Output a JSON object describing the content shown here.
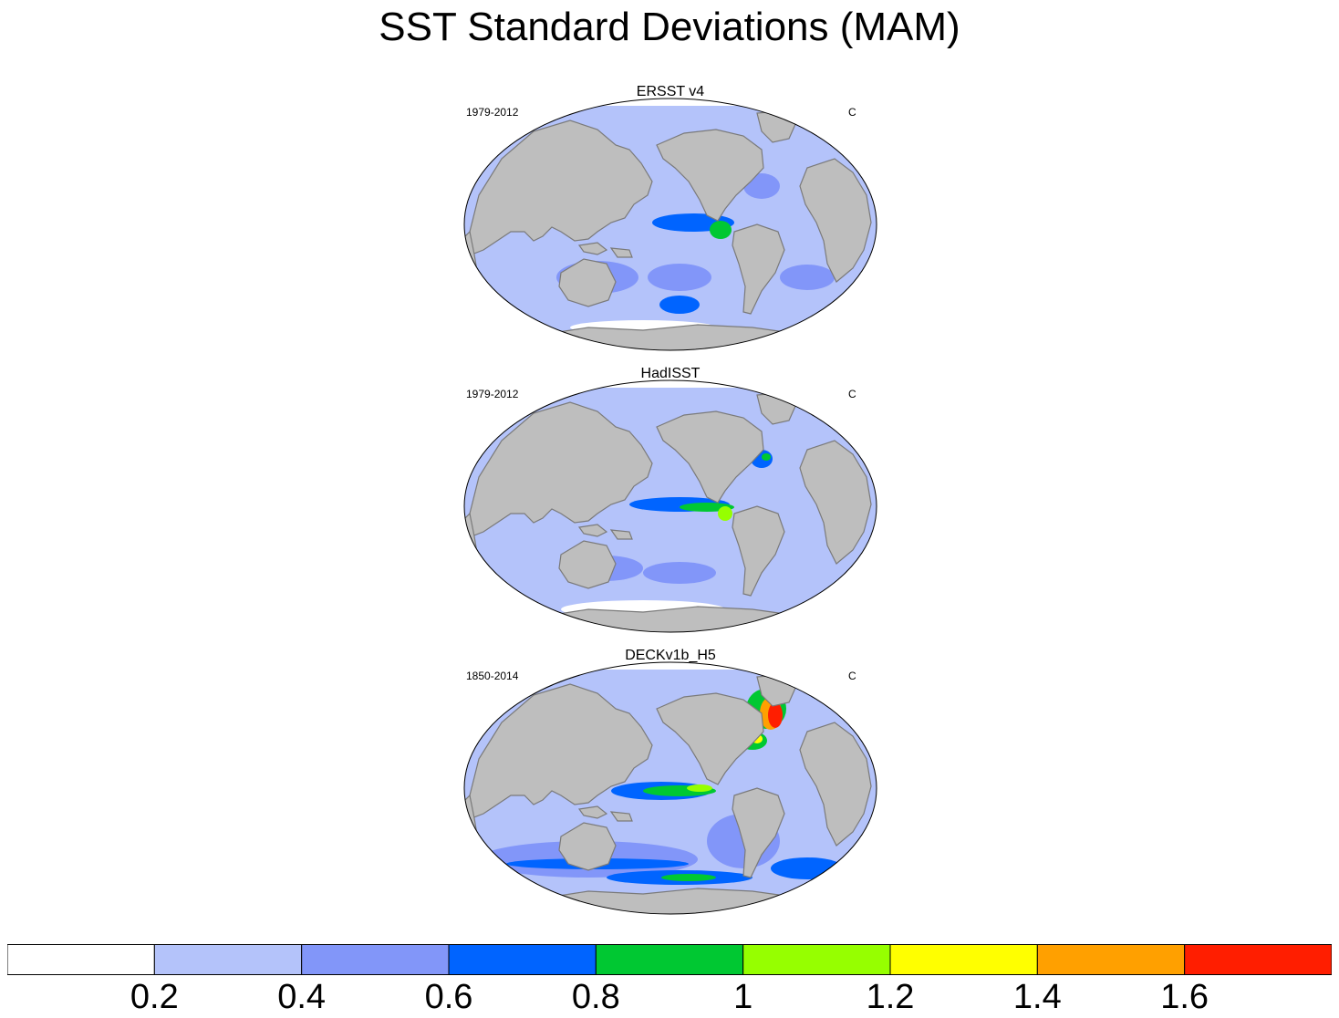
{
  "title": "SST Standard Deviations (MAM)",
  "panels": [
    {
      "name": "ERSST v4",
      "period": "1979-2012",
      "units": "C",
      "intensity": 0
    },
    {
      "name": "HadISST",
      "period": "1979-2012",
      "units": "C",
      "intensity": 1
    },
    {
      "name": "DECKv1b_H5",
      "period": "1850-2014",
      "units": "C",
      "intensity": 2
    }
  ],
  "colorbar": {
    "colors": [
      "#ffffff",
      "#b4c3fa",
      "#8296f9",
      "#0064ff",
      "#00c832",
      "#96ff00",
      "#ffff00",
      "#ffa000",
      "#ff1e00"
    ],
    "tick_labels": [
      "0.2",
      "0.4",
      "0.6",
      "0.8",
      "1",
      "1.2",
      "1.4",
      "1.6"
    ]
  },
  "land_color": "#bebebe"
}
